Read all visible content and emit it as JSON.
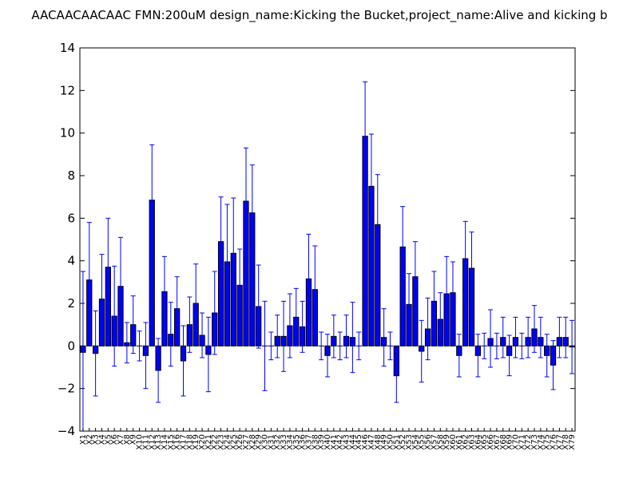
{
  "chart_data": {
    "type": "bar",
    "title": "AACAACAACAAC  FMN:200uM  design_name:Kicking the Bucket,project_name:Alive and kicking b",
    "xlabel": "",
    "ylabel": "",
    "ylim": [
      -4,
      14
    ],
    "yticks": [
      "−4",
      "−2",
      "0",
      "2",
      "4",
      "6",
      "8",
      "10",
      "12",
      "14"
    ],
    "ytick_values": [
      -4,
      -2,
      0,
      2,
      4,
      6,
      8,
      10,
      12,
      14
    ],
    "grid": false,
    "bar_color": "#0000ff",
    "error_color": "#0000ff",
    "categories": [
      "X1",
      "X2",
      "X3",
      "X4",
      "X5",
      "X6",
      "X7",
      "X8",
      "X9",
      "X10",
      "X11",
      "X12",
      "X13",
      "X14",
      "X15",
      "X16",
      "X17",
      "X18",
      "X19",
      "X20",
      "X21",
      "X22",
      "X23",
      "X24",
      "X25",
      "X26",
      "X27",
      "X28",
      "X29",
      "X30",
      "X31",
      "X32",
      "X33",
      "X34",
      "X35",
      "X36",
      "X37",
      "X38",
      "X39",
      "X40",
      "X41",
      "X42",
      "X43",
      "X44",
      "X45",
      "X46",
      "X47",
      "X48",
      "X49",
      "X50",
      "X51",
      "X52",
      "X53",
      "X54",
      "X55",
      "X56",
      "X57",
      "X58",
      "X59",
      "X60",
      "X61",
      "X62",
      "X63",
      "X64",
      "X65",
      "X66",
      "X67",
      "X68",
      "X69",
      "X70",
      "X71",
      "X72",
      "X73",
      "X74",
      "X75",
      "X76",
      "X77",
      "X78",
      "X79"
    ],
    "values": [
      -0.3,
      3.1,
      -0.35,
      2.2,
      3.7,
      1.4,
      2.8,
      0.15,
      1.0,
      0.0,
      -0.45,
      6.85,
      -1.15,
      2.55,
      0.55,
      1.75,
      -0.7,
      1.0,
      2.0,
      0.5,
      -0.4,
      1.55,
      4.9,
      3.95,
      4.35,
      2.85,
      6.8,
      6.25,
      1.85,
      0.0,
      0.0,
      0.45,
      0.45,
      0.95,
      1.35,
      0.9,
      3.15,
      2.65,
      0.0,
      -0.45,
      0.45,
      0.0,
      0.45,
      0.4,
      0.0,
      9.85,
      7.5,
      5.7,
      0.4,
      0.0,
      -1.4,
      4.65,
      1.95,
      3.25,
      -0.25,
      0.8,
      2.1,
      1.25,
      2.45,
      2.5,
      -0.45,
      4.1,
      3.65,
      -0.45,
      0.0,
      0.35,
      0.0,
      0.4,
      -0.45,
      0.4,
      0.0,
      0.4,
      0.8,
      0.4,
      -0.45,
      -0.9,
      0.4,
      0.4,
      -0.05
    ],
    "errors": [
      3.8,
      2.7,
      2.0,
      2.1,
      2.3,
      2.35,
      2.3,
      0.95,
      1.35,
      0.7,
      1.55,
      2.6,
      1.5,
      1.65,
      1.5,
      1.5,
      1.65,
      1.3,
      1.85,
      1.05,
      1.75,
      1.95,
      2.1,
      2.7,
      2.6,
      1.7,
      2.5,
      2.25,
      1.95,
      2.1,
      0.65,
      1.0,
      1.65,
      1.5,
      1.35,
      1.2,
      2.1,
      2.05,
      0.65,
      1.0,
      1.0,
      0.65,
      1.0,
      1.65,
      0.65,
      2.55,
      2.45,
      2.35,
      1.35,
      0.65,
      1.25,
      1.9,
      1.45,
      1.65,
      1.45,
      1.45,
      1.4,
      1.25,
      1.75,
      1.45,
      1.0,
      1.75,
      1.7,
      1.0,
      0.6,
      1.35,
      0.6,
      0.95,
      0.95,
      0.95,
      0.6,
      0.95,
      1.1,
      0.95,
      1.0,
      1.15,
      0.95,
      0.95,
      1.25
    ]
  }
}
